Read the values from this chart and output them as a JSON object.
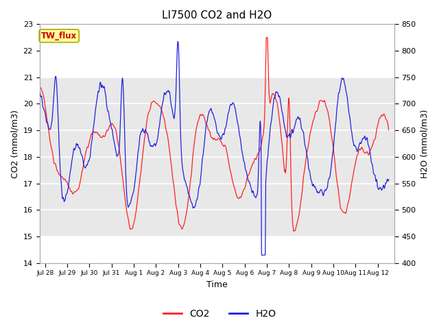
{
  "title": "LI7500 CO2 and H2O",
  "xlabel": "Time",
  "ylabel_left": "CO2 (mmol/m3)",
  "ylabel_right": "H2O (mmol/m3)",
  "co2_ylim": [
    14.0,
    23.0
  ],
  "h2o_ylim": [
    400,
    850
  ],
  "co2_color": "#ff2020",
  "h2o_color": "#2020dd",
  "co2_yticks": [
    14.0,
    15.0,
    16.0,
    17.0,
    18.0,
    19.0,
    20.0,
    21.0,
    22.0,
    23.0
  ],
  "h2o_yticks": [
    400,
    450,
    500,
    550,
    600,
    650,
    700,
    750,
    800,
    850
  ],
  "xtick_labels": [
    "Jul 28",
    "Jul 29",
    "Jul 30",
    "Jul 31",
    "Aug 1",
    "Aug 2",
    "Aug 3",
    "Aug 4",
    "Aug 5",
    "Aug 6",
    "Aug 7",
    "Aug 8",
    "Aug 9",
    "Aug 10",
    "Aug 11",
    "Aug 12"
  ],
  "shaded_co2_low": 15.0,
  "shaded_co2_high": 21.0,
  "tw_flux_label": "TW_flux",
  "tw_flux_label_color": "#cc0000",
  "tw_flux_box_facecolor": "#ffff99",
  "tw_flux_box_edgecolor": "#aaaa00",
  "background_color": "#ffffff",
  "shaded_color": "#e8e8e8",
  "grid_color": "#ffffff",
  "n_points": 5000,
  "days": 16
}
